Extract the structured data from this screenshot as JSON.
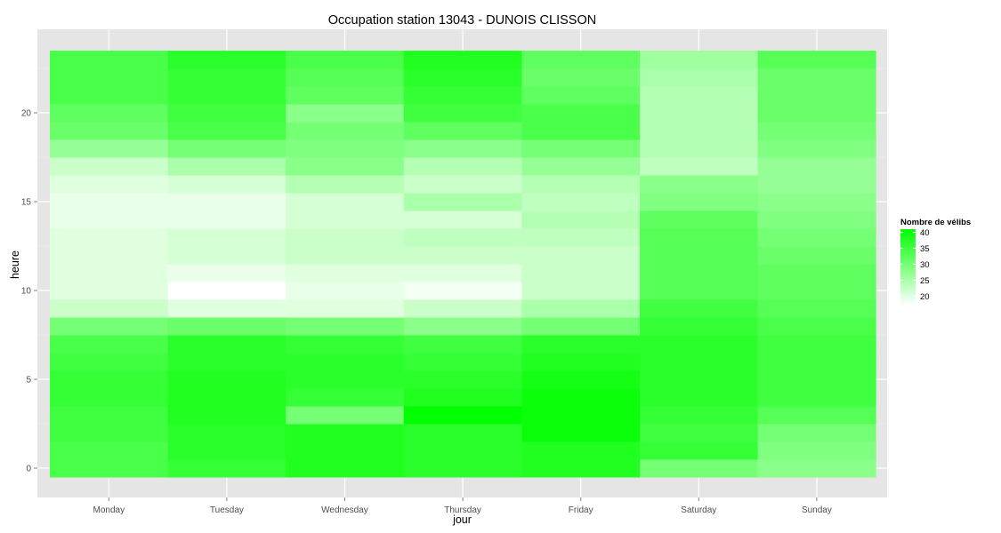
{
  "chart_data": {
    "type": "heatmap",
    "title": "Occupation station 13043 - DUNOIS CLISSON",
    "xlabel": "jour",
    "ylabel": "heure",
    "x_categories": [
      "Monday",
      "Tuesday",
      "Wednesday",
      "Thursday",
      "Friday",
      "Saturday",
      "Sunday"
    ],
    "y_hours": [
      0,
      1,
      2,
      3,
      4,
      5,
      6,
      7,
      8,
      9,
      10,
      11,
      12,
      13,
      14,
      15,
      16,
      17,
      18,
      19,
      20,
      21,
      22,
      23
    ],
    "y_ticks": [
      0,
      5,
      10,
      15,
      20
    ],
    "ylim": [
      -0.5,
      23.5
    ],
    "legend": {
      "title": "Nombre de vélibs",
      "breaks": [
        40,
        35,
        30,
        25,
        20
      ],
      "range": [
        17,
        41
      ],
      "low_color": "#ffffff",
      "high_color": "#00ff00",
      "position": "right"
    },
    "grid": true,
    "panel_background": "#e5e5e5",
    "values_by_day": {
      "Monday": [
        34,
        34,
        35,
        35,
        36,
        36,
        35,
        34,
        30,
        22,
        20,
        20,
        20,
        20,
        19,
        19,
        20,
        22,
        27,
        31,
        32,
        34,
        34,
        34
      ],
      "Tuesday": [
        36,
        37,
        37,
        38,
        38,
        38,
        37,
        37,
        31,
        20,
        17,
        19,
        21,
        21,
        19,
        19,
        21,
        25,
        30,
        34,
        35,
        36,
        36,
        37
      ],
      "Wednesday": [
        38,
        38,
        38,
        30,
        36,
        37,
        37,
        36,
        30,
        20,
        19,
        20,
        22,
        22,
        21,
        21,
        24,
        28,
        29,
        30,
        28,
        32,
        33,
        34
      ],
      "Thursday": [
        37,
        37,
        37,
        41,
        38,
        37,
        36,
        35,
        28,
        22,
        18,
        20,
        22,
        23,
        21,
        25,
        22,
        24,
        28,
        32,
        35,
        36,
        37,
        38
      ],
      "Friday": [
        38,
        38,
        40,
        40,
        40,
        39,
        38,
        37,
        30,
        25,
        22,
        22,
        22,
        23,
        24,
        23,
        24,
        27,
        30,
        34,
        34,
        32,
        31,
        32
      ],
      "Saturday": [
        30,
        36,
        35,
        36,
        37,
        37,
        37,
        37,
        36,
        35,
        33,
        33,
        33,
        33,
        32,
        29,
        28,
        23,
        24,
        24,
        24,
        24,
        25,
        26
      ],
      "Sunday": [
        28,
        29,
        30,
        33,
        35,
        35,
        35,
        35,
        34,
        33,
        32,
        32,
        31,
        30,
        29,
        28,
        27,
        27,
        29,
        30,
        31,
        31,
        31,
        33
      ]
    }
  }
}
